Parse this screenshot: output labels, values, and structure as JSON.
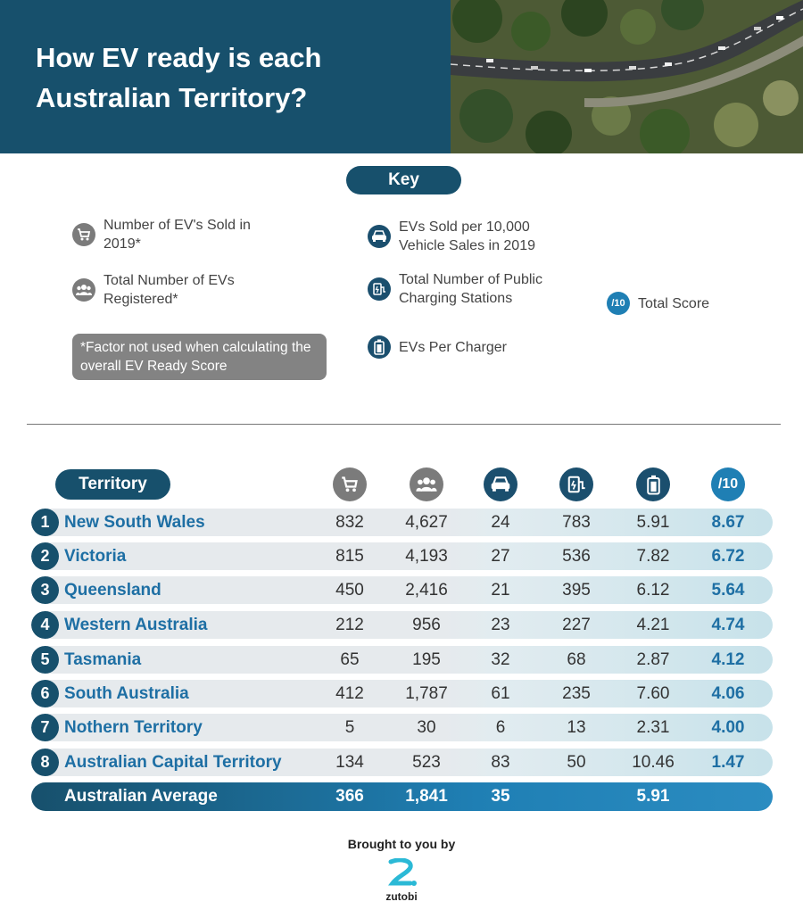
{
  "header": {
    "title": "How EV ready is each Australian Territory?"
  },
  "key": {
    "title": "Key",
    "items": [
      {
        "icon": "cart-icon",
        "label": "Number of EV's Sold in 2019*"
      },
      {
        "icon": "people-icon",
        "label": "Total Number of EVs Registered*"
      },
      {
        "icon": "car-icon",
        "label": "EVs Sold per 10,000 Vehicle Sales in 2019"
      },
      {
        "icon": "charging-station-icon",
        "label": "Total Number of Public Charging Stations"
      },
      {
        "icon": "battery-icon",
        "label": "EVs Per Charger"
      },
      {
        "icon": "score-icon",
        "label": "Total Score"
      }
    ],
    "score_badge": "/10",
    "note": "*Factor not used when calculating the overall EV Ready Score"
  },
  "table": {
    "territory_header": "Territory",
    "score_header": "/10",
    "rows": [
      {
        "rank": "1",
        "name": "New South Wales",
        "sold": "832",
        "registered": "4,627",
        "per10k": "24",
        "stations": "783",
        "per_charger": "5.91",
        "score": "8.67"
      },
      {
        "rank": "2",
        "name": "Victoria",
        "sold": "815",
        "registered": "4,193",
        "per10k": "27",
        "stations": "536",
        "per_charger": "7.82",
        "score": "6.72"
      },
      {
        "rank": "3",
        "name": "Queensland",
        "sold": "450",
        "registered": "2,416",
        "per10k": "21",
        "stations": "395",
        "per_charger": "6.12",
        "score": "5.64"
      },
      {
        "rank": "4",
        "name": "Western Australia",
        "sold": "212",
        "registered": "956",
        "per10k": "23",
        "stations": "227",
        "per_charger": "4.21",
        "score": "4.74"
      },
      {
        "rank": "5",
        "name": "Tasmania",
        "sold": "65",
        "registered": "195",
        "per10k": "32",
        "stations": "68",
        "per_charger": "2.87",
        "score": "4.12"
      },
      {
        "rank": "6",
        "name": "South Australia",
        "sold": "412",
        "registered": "1,787",
        "per10k": "61",
        "stations": "235",
        "per_charger": "7.60",
        "score": "4.06"
      },
      {
        "rank": "7",
        "name": "Nothern Territory",
        "sold": "5",
        "registered": "30",
        "per10k": "6",
        "stations": "13",
        "per_charger": "2.31",
        "score": "4.00"
      },
      {
        "rank": "8",
        "name": "Australian Capital Territory",
        "sold": "134",
        "registered": "523",
        "per10k": "83",
        "stations": "50",
        "per_charger": "10.46",
        "score": "1.47"
      }
    ],
    "average": {
      "label": "Australian Average",
      "sold": "366",
      "registered": "1,841",
      "per10k": "35",
      "per_charger": "5.91"
    }
  },
  "footer": {
    "brought_by": "Brought to you by",
    "brand": "zutobi"
  },
  "colors": {
    "navy": "#17506c",
    "score_blue": "#1e6fa4",
    "grey_icon": "#7b7b7b"
  }
}
